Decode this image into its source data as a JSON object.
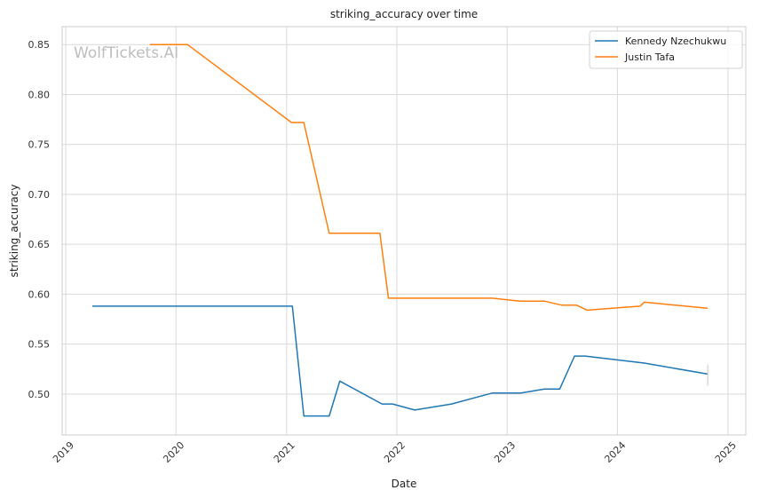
{
  "chart_data": {
    "type": "line",
    "title": "striking_accuracy over time",
    "xlabel": "Date",
    "ylabel": "striking_accuracy",
    "watermark": "WolfTickets.AI",
    "x_ticks": [
      "2019",
      "2020",
      "2021",
      "2022",
      "2023",
      "2024",
      "2025"
    ],
    "y_ticks": [
      "0.50",
      "0.55",
      "0.60",
      "0.65",
      "0.70",
      "0.75",
      "0.80",
      "0.85"
    ],
    "xlim": [
      "2018-12-20",
      "2025-03-01"
    ],
    "ylim": [
      0.459,
      0.868
    ],
    "grid": true,
    "legend_placement": "top-right",
    "series": [
      {
        "name": "Kennedy Nzechukwu",
        "color": "#1f77b4",
        "points": [
          [
            "2019-03-30",
            0.588
          ],
          [
            "2021-01-20",
            0.588
          ],
          [
            "2021-02-27",
            0.478
          ],
          [
            "2021-05-22",
            0.478
          ],
          [
            "2021-06-26",
            0.513
          ],
          [
            "2021-11-13",
            0.49
          ],
          [
            "2021-12-18",
            0.49
          ],
          [
            "2022-03-01",
            0.484
          ],
          [
            "2022-07-01",
            0.49
          ],
          [
            "2022-11-12",
            0.501
          ],
          [
            "2023-02-15",
            0.501
          ],
          [
            "2023-05-05",
            0.505
          ],
          [
            "2023-06-24",
            0.505
          ],
          [
            "2023-08-12",
            0.538
          ],
          [
            "2023-09-16",
            0.538
          ],
          [
            "2024-03-30",
            0.531
          ],
          [
            "2024-10-26",
            0.52
          ]
        ]
      },
      {
        "name": "Justin Tafa",
        "color": "#ff7f0e",
        "points": [
          [
            "2019-10-06",
            0.85
          ],
          [
            "2020-02-08",
            0.85
          ],
          [
            "2021-01-17",
            0.772
          ],
          [
            "2021-02-27",
            0.772
          ],
          [
            "2021-05-22",
            0.661
          ],
          [
            "2021-11-06",
            0.661
          ],
          [
            "2021-12-04",
            0.596
          ],
          [
            "2022-11-12",
            0.596
          ],
          [
            "2023-02-12",
            0.593
          ],
          [
            "2023-05-06",
            0.593
          ],
          [
            "2023-07-01",
            0.589
          ],
          [
            "2023-08-19",
            0.589
          ],
          [
            "2023-09-23",
            0.584
          ],
          [
            "2024-03-16",
            0.588
          ],
          [
            "2024-03-30",
            0.592
          ],
          [
            "2024-10-26",
            0.586
          ]
        ]
      }
    ]
  }
}
